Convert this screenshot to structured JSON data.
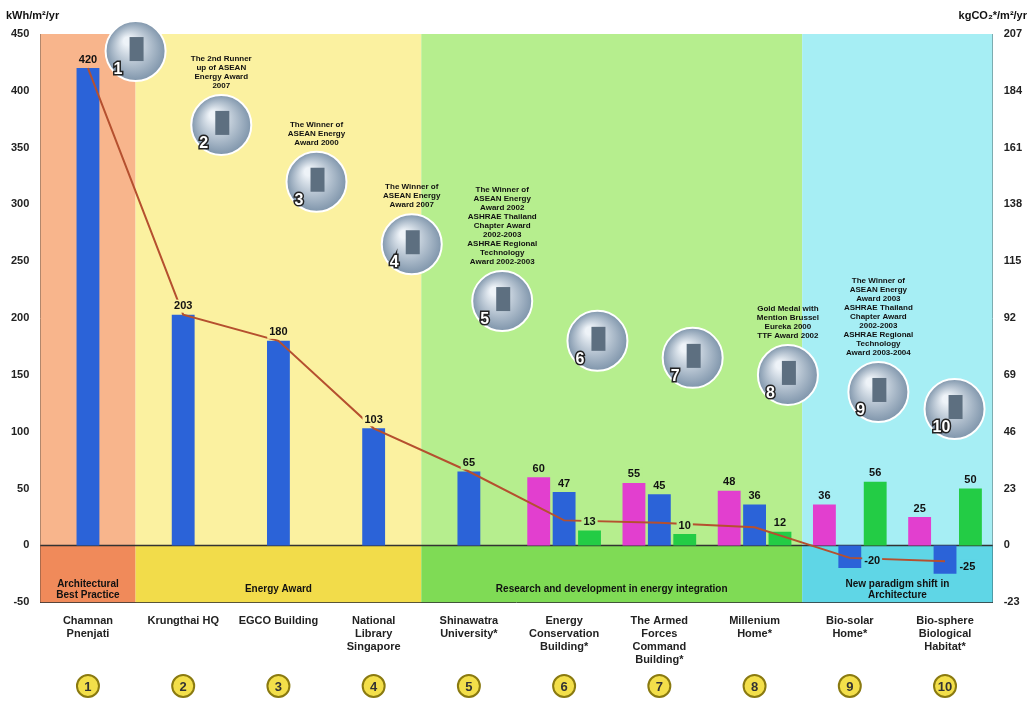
{
  "chart_data": {
    "type": "bar",
    "ylabel": "kWh/m²/yr",
    "y2label": "kgCO₂*/m²/yr",
    "categories": [
      "Chamnan Pnenjati",
      "Krungthai HQ",
      "EGCO Building",
      "National Library Singapore",
      "Shinawatra University*",
      "Energy Conservation Building*",
      "The Armed Forces Command Building*",
      "Millenium Home*",
      "Bio-solar Home*",
      "Bio-sphere Biological Habitat*"
    ],
    "category_numbers": [
      1,
      2,
      3,
      4,
      5,
      6,
      7,
      8,
      9,
      10
    ],
    "series": [
      {
        "type": "bar",
        "color": "#e23fcf",
        "values": [
          null,
          null,
          null,
          null,
          null,
          60,
          55,
          48,
          36,
          25
        ]
      },
      {
        "type": "bar",
        "color": "#2b63d8",
        "values": [
          420,
          203,
          180,
          103,
          65,
          47,
          45,
          36,
          -20,
          -25
        ]
      },
      {
        "type": "bar",
        "color": "#23cc45",
        "values": [
          null,
          null,
          null,
          null,
          null,
          13,
          10,
          12,
          56,
          50
        ]
      },
      {
        "type": "line",
        "color": "#b5502f",
        "values": [
          420,
          203,
          180,
          103,
          65,
          22,
          20,
          16,
          -11,
          -14
        ],
        "marker": "none",
        "line_style": "solid",
        "data_labels": false
      }
    ],
    "ylim": [
      -50,
      450
    ],
    "yticks": [
      -50,
      0,
      50,
      100,
      150,
      200,
      250,
      300,
      350,
      400,
      450
    ],
    "y2lim": [
      -23,
      207
    ],
    "y2ticks": [
      -23,
      0,
      23,
      46,
      69,
      92,
      115,
      138,
      161,
      184,
      207
    ],
    "grid": false,
    "data_labels": true,
    "groups": [
      {
        "label": "Architectural Best Practice",
        "categories": [
          "Chamnan Pnenjati"
        ]
      },
      {
        "label": "Energy Award",
        "categories": [
          "Krungthai HQ",
          "EGCO Building",
          "National Library Singapore"
        ]
      },
      {
        "label": "Research and development in energy integration",
        "categories": [
          "Shinawatra University*",
          "Energy Conservation Building*",
          "The Armed Forces Command Building*",
          "Millenium Home*"
        ]
      },
      {
        "label": "New paradigm shift in Architecture",
        "categories": [
          "Bio-solar Home*",
          "Bio-sphere Biological Habitat*"
        ]
      }
    ],
    "awards": [
      {
        "category": "Krungthai HQ",
        "text": [
          "The 2nd Runner up of ASEAN Energy Award 2007"
        ]
      },
      {
        "category": "EGCO Building",
        "text": [
          "The Winner of ASEAN Energy Award 2000"
        ]
      },
      {
        "category": "National Library Singapore",
        "text": [
          "The Winner of ASEAN Energy Award 2007"
        ]
      },
      {
        "category": "Shinawatra University*",
        "text": [
          "The Winner of ASEAN Energy Award 2002",
          "ASHRAE Thailand Chapter Award 2002-2003",
          "ASHRAE Regional Technology Award 2002-2003"
        ]
      },
      {
        "category": "Millenium Home*",
        "text": [
          "Gold Medal with Mention Brussel Eureka 2000",
          "TTF Award 2002"
        ]
      },
      {
        "category": "Bio-solar Home*",
        "text": [
          "The Winner of ASEAN Energy Award 2003",
          "ASHRAE Thailand Chapter Award 2002-2003",
          "ASHRAE Regional Technology Award 2003-2004"
        ]
      }
    ]
  }
}
